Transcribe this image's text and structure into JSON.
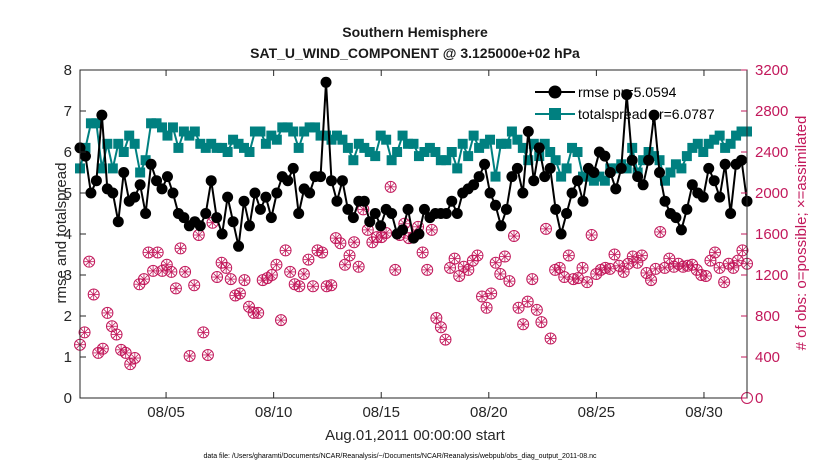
{
  "chart_data": {
    "type": "line",
    "title": "Southern Hemisphere",
    "subtitle": "SAT_U_WIND_COMPONENT @ 3.125000e+02 hPa",
    "xlabel": "Aug.01,2011 00:00:00 start",
    "ylabel": "rmse and totalspread",
    "y2label": "# of obs: o=possible; ×=assimilated",
    "xlim": [
      1,
      32
    ],
    "ylim": [
      0,
      8
    ],
    "y2lim": [
      0,
      3200
    ],
    "xticks": [
      5,
      10,
      15,
      20,
      25,
      30
    ],
    "xtick_labels": [
      "08/05",
      "08/10",
      "08/15",
      "08/20",
      "08/25",
      "08/30"
    ],
    "yticks": [
      "0",
      "1",
      "2",
      "3",
      "4",
      "5",
      "6",
      "7",
      "8"
    ],
    "y2ticks": [
      "0",
      "400",
      "800",
      "1200",
      "1600",
      "2000",
      "2400",
      "2800",
      "3200"
    ],
    "legend": {
      "position": "top-right",
      "entries": [
        "rmse pr=5.0594",
        "totalspread pr=6.0787"
      ]
    },
    "colors": {
      "rmse": "#000000",
      "spread": "#008080",
      "obs": "#c2185b"
    },
    "footnote": "data file: /Users/gharamti/Documents/NCAR/Reanalysis/~/Documents/NCAR/Reanalysis/webpub/obs_diag_output_2011-08.nc",
    "series": [
      {
        "name": "rmse",
        "values": [
          6.1,
          5.9,
          5.0,
          5.3,
          6.9,
          5.1,
          5.0,
          4.3,
          5.5,
          4.8,
          4.9,
          5.2,
          4.5,
          5.7,
          5.3,
          5.1,
          5.4,
          5.0,
          4.5,
          4.4,
          4.2,
          4.3,
          4.2,
          4.5,
          5.3,
          4.4,
          4.0,
          4.9,
          4.3,
          3.7,
          4.8,
          4.2,
          5.0,
          4.6,
          4.9,
          4.4,
          5.0,
          5.4,
          5.3,
          5.6,
          4.5,
          5.1,
          5.0,
          5.4,
          5.4,
          7.7,
          5.3,
          4.8,
          5.3,
          4.6,
          4.4,
          4.8,
          4.8,
          4.3,
          4.5,
          4.2,
          4.6,
          4.5,
          4.0,
          4.1,
          4.6,
          3.9,
          4.0,
          4.6,
          4.4,
          4.5,
          4.5,
          4.5,
          4.8,
          4.5,
          5.0,
          5.1,
          5.2,
          5.4,
          5.7,
          5.0,
          4.7,
          4.2,
          4.6,
          5.4,
          5.6,
          5.0,
          6.5,
          5.3,
          6.1,
          5.4,
          5.6,
          4.6,
          4.0,
          4.5,
          5.0,
          5.3,
          4.8,
          5.6,
          5.5,
          6.0,
          5.9,
          5.5,
          5.1,
          5.6,
          7.4,
          5.8,
          5.4,
          5.2,
          5.8,
          6.9,
          5.5,
          4.8,
          4.5,
          4.4,
          4.1,
          4.6,
          5.2,
          5.0,
          4.9,
          5.6,
          5.3,
          4.9,
          5.7,
          4.5,
          5.7,
          5.8,
          4.8
        ]
      },
      {
        "name": "totalspread",
        "values": [
          5.6,
          6.1,
          6.7,
          6.7,
          5.6,
          6.2,
          5.6,
          6.2,
          6.0,
          6.4,
          6.2,
          5.5,
          5.8,
          6.7,
          6.7,
          6.6,
          6.4,
          6.6,
          6.1,
          6.5,
          6.4,
          6.5,
          6.2,
          6.1,
          6.2,
          6.1,
          6.1,
          6.0,
          6.3,
          6.2,
          6.1,
          6.0,
          6.5,
          6.5,
          6.2,
          6.4,
          6.3,
          6.6,
          6.6,
          6.5,
          6.1,
          6.5,
          6.6,
          6.6,
          6.4,
          6.4,
          6.3,
          6.4,
          6.3,
          6.1,
          5.8,
          6.2,
          6.1,
          6.0,
          5.9,
          6.4,
          6.3,
          5.8,
          6.0,
          6.4,
          6.2,
          6.2,
          5.9,
          6.0,
          6.1,
          6.0,
          5.8,
          5.8,
          6.0,
          5.6,
          6.2,
          5.9,
          6.4,
          6.1,
          6.2,
          6.3,
          5.4,
          6.2,
          6.2,
          6.5,
          6.3,
          6.1,
          5.8,
          6.2,
          5.9,
          6.2,
          6.0,
          5.8,
          5.4,
          5.6,
          6.1,
          6.0,
          5.4,
          5.4,
          5.3,
          5.4,
          5.3,
          5.6,
          5.6,
          5.7,
          5.6,
          6.1,
          5.5,
          5.8,
          6.0,
          5.9,
          5.8,
          5.3,
          5.5,
          5.7,
          5.6,
          5.9,
          6.1,
          6.2,
          6.0,
          6.2,
          6.3,
          6.4,
          6.1,
          6.2,
          6.4,
          6.5,
          6.5
        ]
      },
      {
        "name": "obs possible",
        "values": [
          520,
          640,
          1330,
          1010,
          440,
          480,
          830,
          700,
          620,
          470,
          440,
          330,
          390,
          1110,
          1160,
          1420,
          1240,
          1420,
          1240,
          1300,
          1230,
          1070,
          1460,
          1230,
          410,
          1100,
          1590,
          640,
          420,
          1710,
          1180,
          1320,
          1270,
          1160,
          1000,
          1020,
          1150,
          890,
          830,
          830,
          1150,
          1170,
          1200,
          1300,
          760,
          1440,
          1230,
          1110,
          1090,
          1210,
          1350,
          1090,
          1440,
          1420,
          1090,
          1100,
          1560,
          1510,
          1300,
          1390,
          1520,
          1280,
          1840,
          1640,
          1520,
          1570,
          1570,
          1610,
          2060,
          1250,
          1590,
          1700,
          1560,
          1570,
          1670,
          1420,
          1250,
          1640,
          780,
          690,
          570,
          1270,
          1360,
          1190,
          1280,
          1250,
          1340,
          1390,
          990,
          880,
          1020,
          1320,
          1210,
          1380,
          1140,
          1580,
          880,
          720,
          940,
          1160,
          860,
          740,
          1650,
          580,
          1250,
          1270,
          1180,
          1390,
          1160,
          1170,
          1270,
          1130,
          1590,
          1210,
          1250,
          1270,
          1260,
          1400,
          1290,
          1230,
          1310,
          1380,
          1320,
          1390,
          1220,
          1150,
          1260,
          1620,
          1270,
          1360,
          1280,
          1310,
          1280,
          1290,
          1300,
          1250,
          1200,
          1190,
          1340,
          1420,
          1270,
          1130,
          1310,
          1270,
          1340,
          1440,
          1310
        ]
      },
      {
        "name": "obs assimilated",
        "values": [
          520,
          640,
          1330,
          1010,
          440,
          480,
          830,
          700,
          620,
          470,
          440,
          330,
          390,
          1110,
          1160,
          1420,
          1240,
          1420,
          1240,
          1300,
          1230,
          1070,
          1460,
          1230,
          410,
          1100,
          1590,
          640,
          420,
          1710,
          1180,
          1320,
          1270,
          1160,
          1000,
          1020,
          1150,
          890,
          830,
          830,
          1150,
          1170,
          1200,
          1300,
          760,
          1440,
          1230,
          1110,
          1090,
          1210,
          1350,
          1090,
          1440,
          1420,
          1090,
          1100,
          1560,
          1510,
          1300,
          1390,
          1520,
          1280,
          1840,
          1640,
          1520,
          1570,
          1570,
          1610,
          2060,
          1250,
          1590,
          1700,
          1560,
          1570,
          1670,
          1420,
          1250,
          1640,
          780,
          690,
          570,
          1270,
          1360,
          1190,
          1280,
          1250,
          1340,
          1390,
          990,
          880,
          1020,
          1320,
          1210,
          1380,
          1140,
          1580,
          880,
          720,
          940,
          1160,
          860,
          740,
          1650,
          580,
          1250,
          1270,
          1180,
          1390,
          1160,
          1170,
          1270,
          1130,
          1590,
          1210,
          1250,
          1270,
          1260,
          1400,
          1290,
          1230,
          1310,
          1380,
          1320,
          1390,
          1220,
          1150,
          1260,
          1620,
          1270,
          1360,
          1280,
          1310,
          1280,
          1290,
          1300,
          1250,
          1200,
          1190,
          1340,
          1420,
          1270,
          1130,
          1310,
          1270,
          1340,
          1440,
          1310
        ]
      }
    ]
  }
}
